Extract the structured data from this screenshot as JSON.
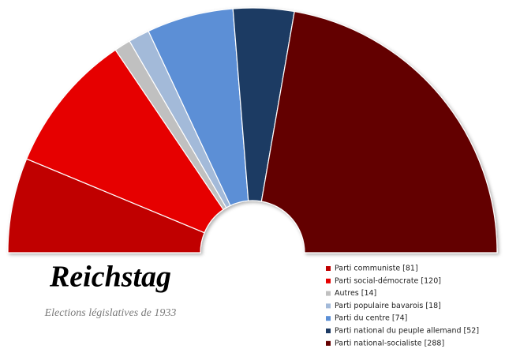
{
  "chart_data": {
    "type": "half-donut",
    "title": "Reichstag",
    "subtitle": "Elections législatives de 1933",
    "series": [
      {
        "name": "Parti communiste [81]",
        "color": "#c00000",
        "values": [
          81
        ]
      },
      {
        "name": "Parti social-démocrate [120]",
        "color": "#e60000",
        "values": [
          120
        ]
      },
      {
        "name": "Autres [14]",
        "color": "#c0c0c0",
        "values": [
          14
        ]
      },
      {
        "name": "Parti populaire bavarois [18]",
        "color": "#a3bad9",
        "values": [
          18
        ]
      },
      {
        "name": "Parti du centre [74]",
        "color": "#5b8fd6",
        "values": [
          74
        ]
      },
      {
        "name": "Parti national du peuple allemand [52]",
        "color": "#1d3a63",
        "values": [
          52
        ]
      },
      {
        "name": "Parti national-socialiste [288]",
        "color": "#640000",
        "values": [
          288
        ]
      }
    ]
  }
}
